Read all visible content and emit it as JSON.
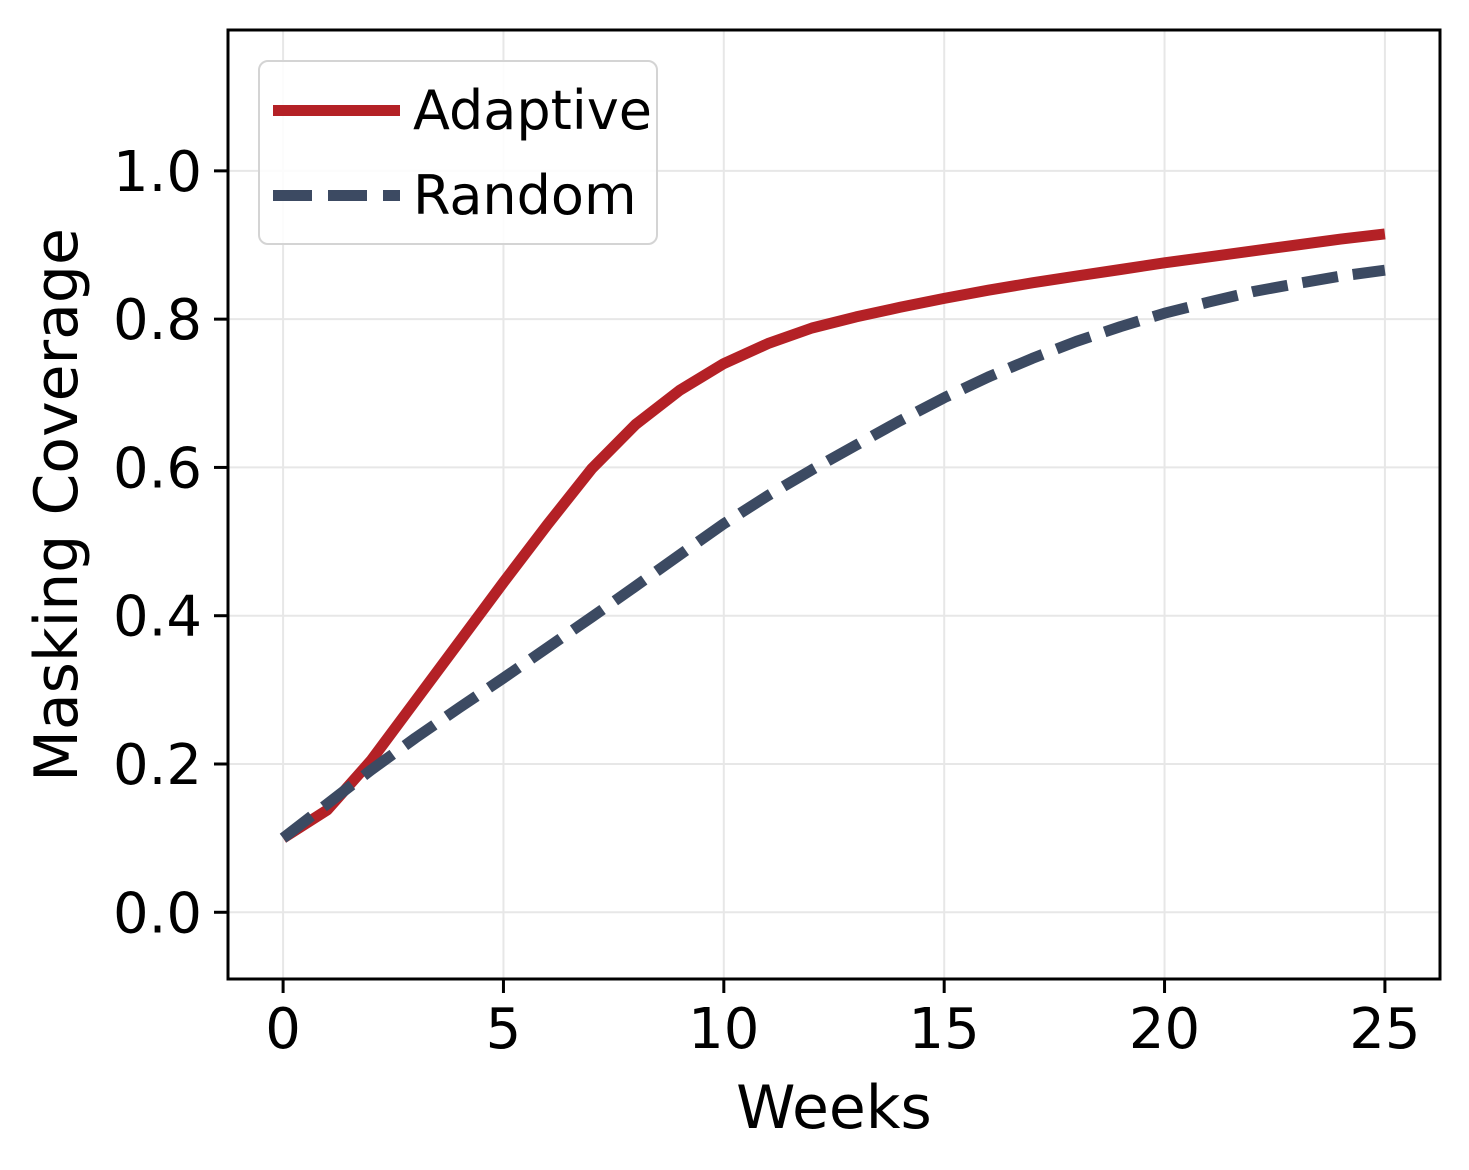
{
  "figure": {
    "xlabel": "Weeks",
    "ylabel": "Masking Coverage"
  },
  "chart_data": {
    "type": "line",
    "title": "",
    "xlabel": "Weeks",
    "ylabel": "Masking Coverage",
    "x": [
      0,
      1,
      2,
      3,
      4,
      5,
      6,
      7,
      8,
      9,
      10,
      11,
      12,
      13,
      14,
      15,
      16,
      17,
      18,
      19,
      20,
      21,
      22,
      23,
      24,
      25
    ],
    "series": [
      {
        "name": "Adaptive",
        "color": "#B42126",
        "dash": "solid",
        "values": [
          0.1,
          0.138,
          0.205,
          0.285,
          0.365,
          0.445,
          0.523,
          0.598,
          0.658,
          0.704,
          0.74,
          0.767,
          0.788,
          0.803,
          0.816,
          0.828,
          0.839,
          0.849,
          0.858,
          0.867,
          0.876,
          0.884,
          0.892,
          0.9,
          0.908,
          0.915
        ]
      },
      {
        "name": "Random",
        "color": "#3C4A62",
        "dash": "dashed",
        "values": [
          0.1,
          0.146,
          0.192,
          0.235,
          0.276,
          0.316,
          0.357,
          0.398,
          0.44,
          0.482,
          0.524,
          0.562,
          0.597,
          0.63,
          0.663,
          0.694,
          0.722,
          0.747,
          0.77,
          0.79,
          0.808,
          0.823,
          0.837,
          0.848,
          0.858,
          0.866
        ]
      }
    ],
    "xlim": [
      -1.25,
      26.25
    ],
    "ylim": [
      -0.09,
      1.19
    ],
    "xticks": [
      0,
      5,
      10,
      15,
      20,
      25
    ],
    "yticks": [
      0.0,
      0.2,
      0.4,
      0.6,
      0.8,
      1.0
    ],
    "grid": true,
    "legend_position": "upper left",
    "colors": {
      "grid": "#e7e7e7",
      "spine": "#000000",
      "background": "#ffffff"
    }
  }
}
